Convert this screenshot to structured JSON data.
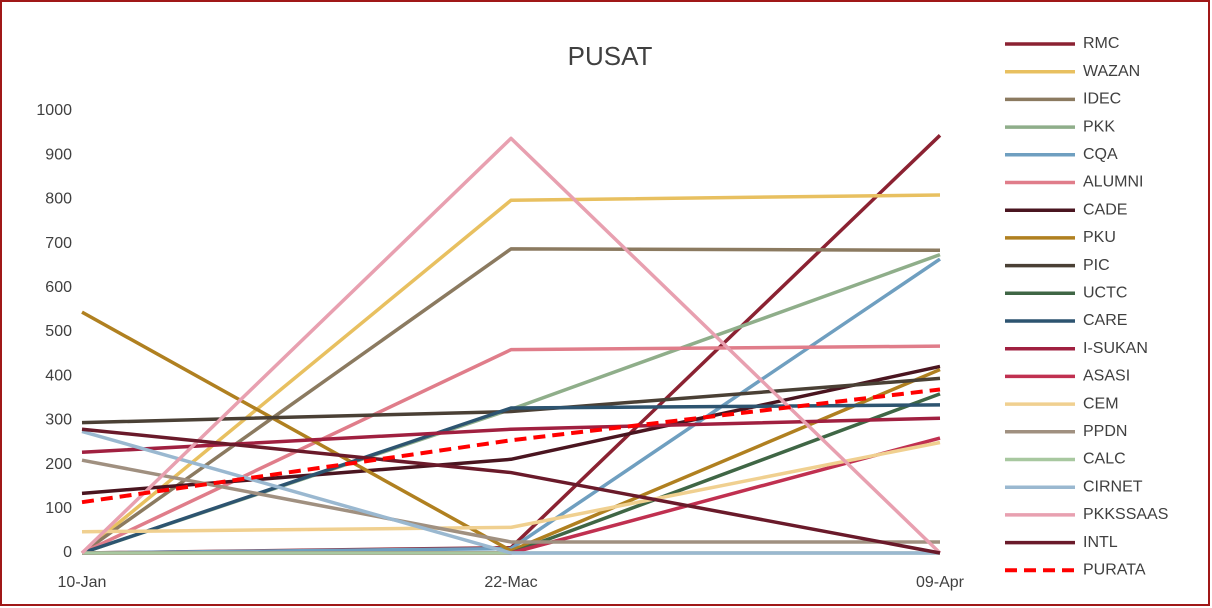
{
  "chart_data": {
    "type": "line",
    "title": "PUSAT",
    "categories": [
      "10-Jan",
      "22-Mac",
      "09-Apr"
    ],
    "ylim": [
      0,
      1000
    ],
    "yticks": [
      0,
      100,
      200,
      300,
      400,
      500,
      600,
      700,
      800,
      900,
      1000
    ],
    "grid": false,
    "legend": "right",
    "series": [
      {
        "name": "RMC",
        "color": "#8b2232",
        "values": [
          0,
          12,
          945
        ]
      },
      {
        "name": "WAZAN",
        "color": "#e8c060",
        "values": [
          0,
          798,
          810
        ]
      },
      {
        "name": "IDEC",
        "color": "#8b7a60",
        "values": [
          0,
          688,
          685
        ]
      },
      {
        "name": "PKK",
        "color": "#8fae8a",
        "values": [
          0,
          325,
          675
        ]
      },
      {
        "name": "CQA",
        "color": "#6f9fc0",
        "values": [
          0,
          10,
          665
        ]
      },
      {
        "name": "ALUMNI",
        "color": "#e07d8a",
        "values": [
          0,
          460,
          468
        ]
      },
      {
        "name": "CADE",
        "color": "#4a1520",
        "values": [
          135,
          212,
          422
        ]
      },
      {
        "name": "PKU",
        "color": "#b08020",
        "values": [
          545,
          5,
          415
        ]
      },
      {
        "name": "PIC",
        "color": "#4a4035",
        "values": [
          295,
          320,
          395
        ]
      },
      {
        "name": "UCTC",
        "color": "#3f6645",
        "values": [
          0,
          0,
          360
        ]
      },
      {
        "name": "CARE",
        "color": "#2d5470",
        "values": [
          0,
          328,
          335
        ]
      },
      {
        "name": "I-SUKAN",
        "color": "#a02040",
        "values": [
          228,
          280,
          305
        ]
      },
      {
        "name": "ASASI",
        "color": "#c03050",
        "values": [
          0,
          0,
          260
        ]
      },
      {
        "name": "CEM",
        "color": "#f0d090",
        "values": [
          48,
          58,
          250
        ]
      },
      {
        "name": "PPDN",
        "color": "#a09080",
        "values": [
          210,
          25,
          25
        ]
      },
      {
        "name": "CALC",
        "color": "#a8c8a0",
        "values": [
          0,
          0,
          0
        ]
      },
      {
        "name": "CIRNET",
        "color": "#9ab8d0",
        "values": [
          275,
          0,
          0
        ]
      },
      {
        "name": "PKKSSAAS",
        "color": "#e8a0b0",
        "values": [
          0,
          938,
          0
        ]
      },
      {
        "name": "INTL",
        "color": "#6a1a2a",
        "values": [
          280,
          182,
          0
        ]
      },
      {
        "name": "PURATA",
        "color": "#ff0000",
        "dashed": true,
        "values": [
          115,
          255,
          370
        ]
      }
    ]
  }
}
